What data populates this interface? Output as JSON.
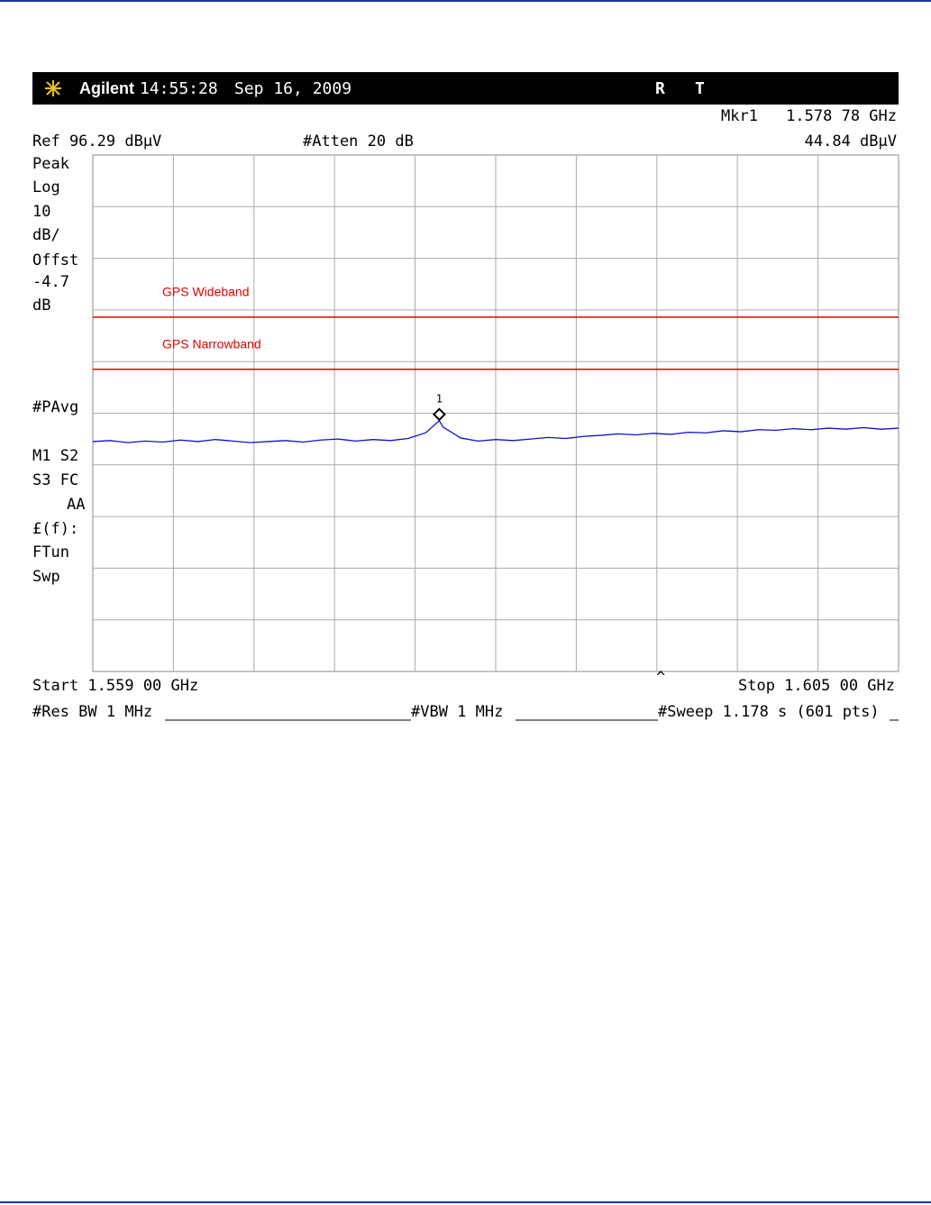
{
  "header": {
    "brand": "Agilent",
    "time": "14:55:28",
    "date": "Sep 16, 2009",
    "status_r": "R",
    "status_t": "T"
  },
  "marker_info": {
    "label": "Mkr1",
    "frequency": "1.578 78 GHz",
    "level": "44.84 dBµV"
  },
  "settings": {
    "ref": "Ref 96.29 dBµV",
    "atten": "#Atten 20 dB"
  },
  "left_panel": [
    "Peak",
    "Log",
    "10",
    "dB/",
    "Offst",
    "-4.7",
    "dB",
    "#PAvg",
    "M1  S2",
    "S3  FC",
    "AA",
    "£(f):",
    "FTun",
    "Swp"
  ],
  "footer": {
    "start": "Start 1.559 00 GHz",
    "stop": "Stop 1.605 00 GHz",
    "res_bw": "#Res BW 1 MHz",
    "vbw": "#VBW 1 MHz",
    "sweep": "#Sweep 1.178 s (601 pts)",
    "caret": "^"
  },
  "chart_data": {
    "type": "line",
    "xlim": [
      1.559,
      1.605
    ],
    "ylim": [
      -3.71,
      96.29
    ],
    "limit_lines": [
      {
        "name": "GPS Wideband",
        "value": 64.9,
        "color": "#e00000"
      },
      {
        "name": "GPS Narrowband",
        "value": 54.8,
        "color": "#e00000"
      }
    ],
    "series": [
      {
        "name": "Trace",
        "color": "#1010cc",
        "x": [
          1.559,
          1.56,
          1.561,
          1.562,
          1.563,
          1.564,
          1.565,
          1.566,
          1.567,
          1.568,
          1.569,
          1.57,
          1.571,
          1.572,
          1.573,
          1.574,
          1.575,
          1.576,
          1.577,
          1.578,
          1.57878,
          1.579,
          1.58,
          1.581,
          1.582,
          1.583,
          1.584,
          1.585,
          1.586,
          1.587,
          1.588,
          1.589,
          1.59,
          1.591,
          1.592,
          1.593,
          1.594,
          1.595,
          1.596,
          1.597,
          1.598,
          1.599,
          1.6,
          1.601,
          1.602,
          1.603,
          1.604,
          1.605
        ],
        "values": [
          40.8,
          41.0,
          40.6,
          40.9,
          40.7,
          41.1,
          40.8,
          41.2,
          40.9,
          40.6,
          40.8,
          41.0,
          40.7,
          41.1,
          41.3,
          40.9,
          41.2,
          41.0,
          41.4,
          42.5,
          44.84,
          43.6,
          41.5,
          40.9,
          41.2,
          41.0,
          41.3,
          41.6,
          41.4,
          41.8,
          42.0,
          42.3,
          42.1,
          42.4,
          42.2,
          42.6,
          42.5,
          42.9,
          42.7,
          43.1,
          43.0,
          43.3,
          43.1,
          43.4,
          43.2,
          43.5,
          43.2,
          43.4
        ]
      }
    ],
    "marker": {
      "id": "1",
      "index": 20
    }
  }
}
